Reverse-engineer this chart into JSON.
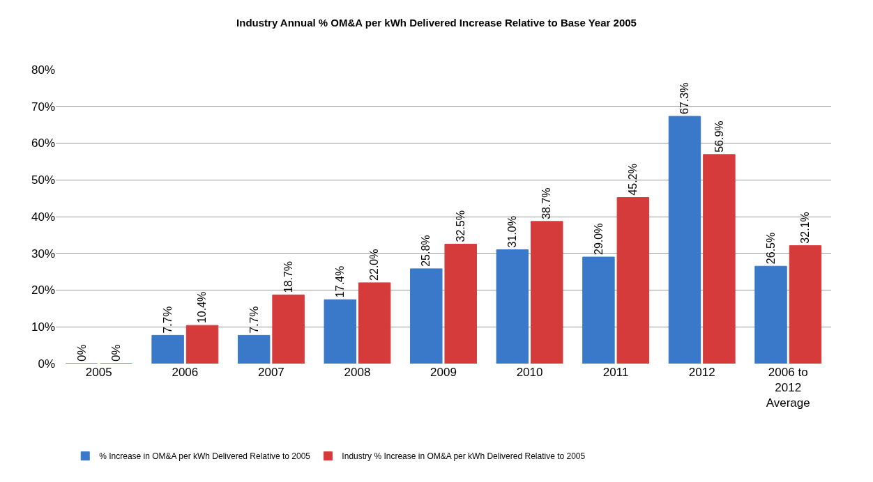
{
  "chart_data": {
    "type": "bar",
    "title": "Industry Annual % OM&A per kWh Delivered Increase Relative to Base Year 2005",
    "categories": [
      "2005",
      "2006",
      "2007",
      "2008",
      "2009",
      "2010",
      "2011",
      "2012",
      "2006 to 2012 Average"
    ],
    "series": [
      {
        "name": "% Increase in OM&A per kWh Delivered Relative to 2005",
        "color": "#3a78c9",
        "values": [
          0,
          7.7,
          7.7,
          17.4,
          25.8,
          31.0,
          29.0,
          67.3,
          26.5
        ],
        "value_labels": [
          "0%",
          "7.7%",
          "7.7%",
          "17.4%",
          "25.8%",
          "31.0%",
          "29.0%",
          "67.3%",
          "26.5%"
        ]
      },
      {
        "name": "Industry % Increase in OM&A per kWh Delivered Relative to 2005",
        "color": "#d63b3b",
        "values": [
          0,
          10.4,
          18.7,
          22.0,
          32.5,
          38.7,
          45.2,
          56.9,
          32.1
        ],
        "value_labels": [
          "0%",
          "10.4%",
          "18.7%",
          "22.0%",
          "32.5%",
          "38.7%",
          "45.2%",
          "56.9%",
          "32.1%"
        ]
      }
    ],
    "ylim": [
      0,
      80
    ],
    "yticks": [
      {
        "value": 0,
        "label": "0%"
      },
      {
        "value": 10,
        "label": "10%"
      },
      {
        "value": 20,
        "label": "20%"
      },
      {
        "value": 30,
        "label": "30%"
      },
      {
        "value": 40,
        "label": "40%"
      },
      {
        "value": 50,
        "label": "50%"
      },
      {
        "value": 60,
        "label": "60%"
      },
      {
        "value": 70,
        "label": "70%"
      },
      {
        "value": 80,
        "label": "80%"
      }
    ],
    "grid": "y",
    "legend": "bottom"
  }
}
